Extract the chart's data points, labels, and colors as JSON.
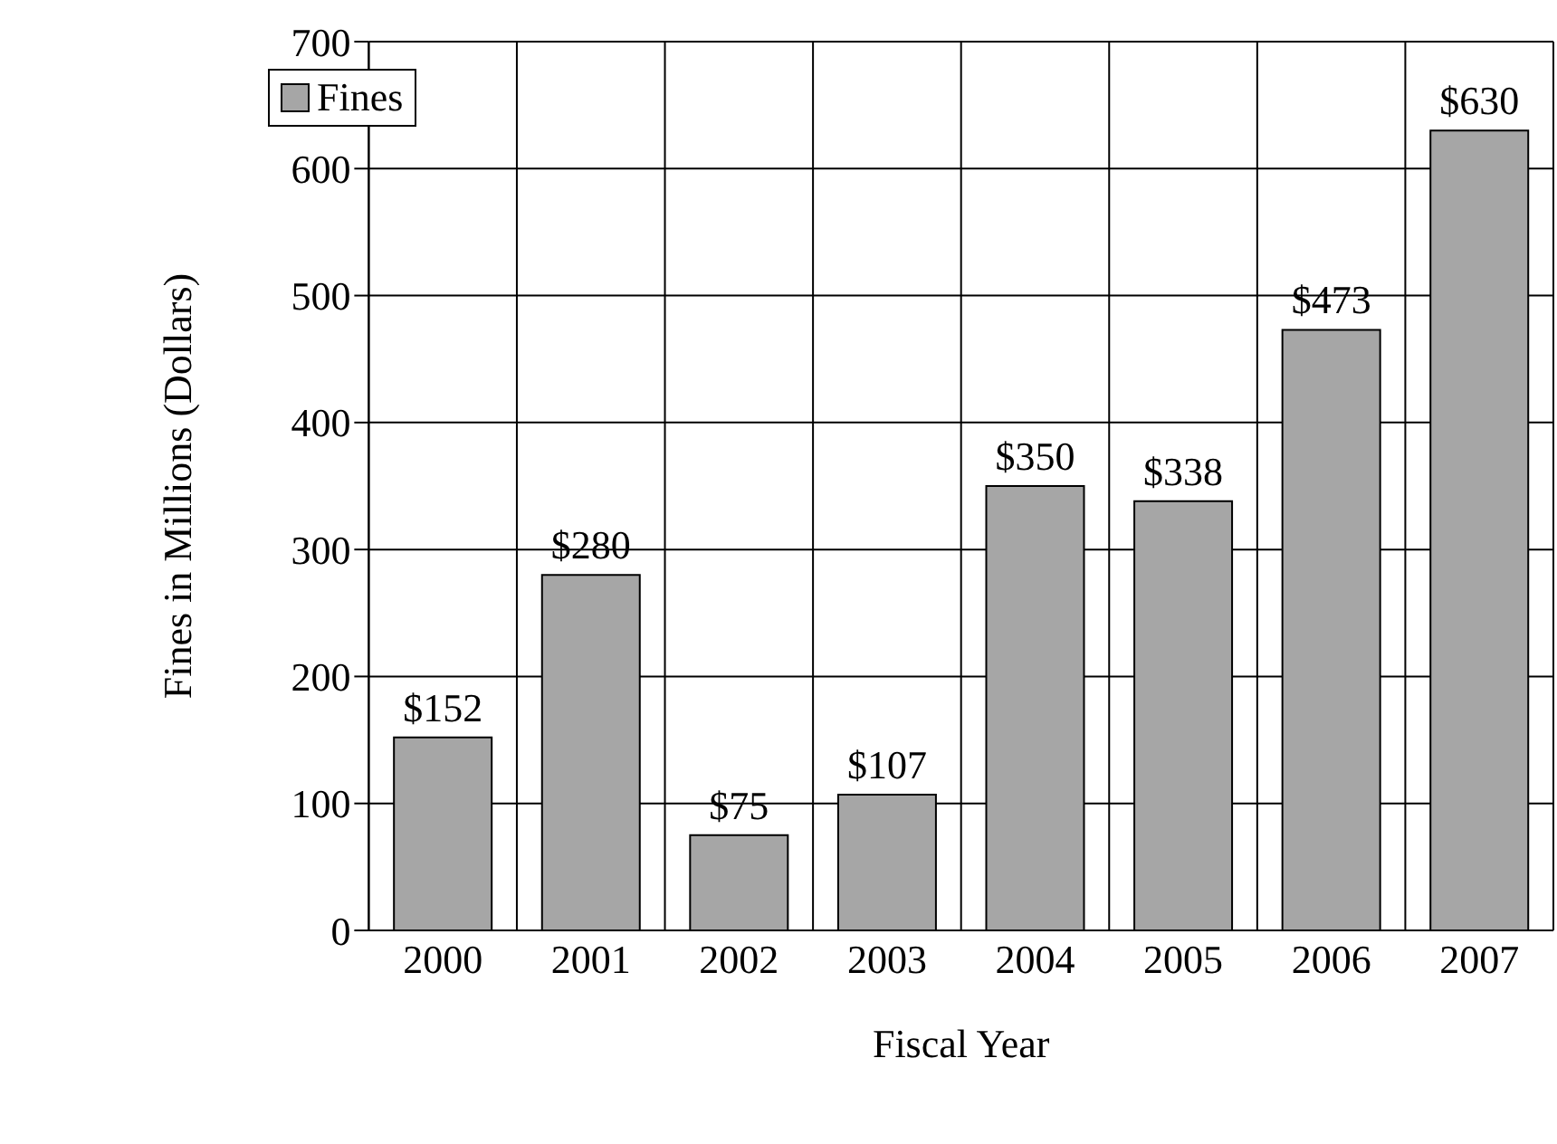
{
  "chart_data": {
    "type": "bar",
    "xlabel": "Fiscal Year",
    "ylabel": "Fines in Millions (Dollars)",
    "categories": [
      "2000",
      "2001",
      "2002",
      "2003",
      "2004",
      "2005",
      "2006",
      "2007"
    ],
    "series": [
      {
        "name": "Fines",
        "color": "#a6a6a6",
        "values": [
          152,
          280,
          75,
          107,
          350,
          338,
          473,
          630
        ],
        "value_labels": [
          "$152",
          "$280",
          "$75",
          "$107",
          "$350",
          "$338",
          "$473",
          "$630"
        ]
      }
    ],
    "ylim": [
      0,
      700
    ],
    "yticks": [
      0,
      100,
      200,
      300,
      400,
      500,
      600,
      700
    ],
    "grid": true,
    "legend": "top left"
  }
}
